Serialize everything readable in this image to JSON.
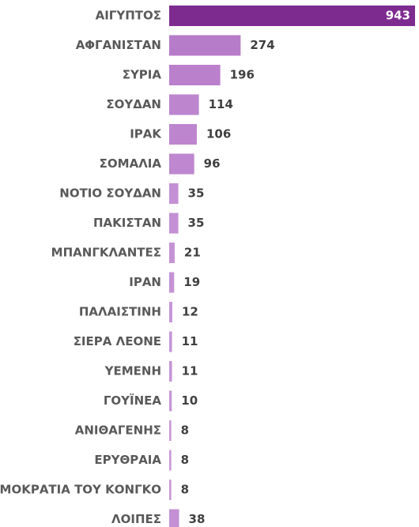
{
  "chart_data": {
    "type": "hbar",
    "categories": [
      "ΑΙΓΥΠΤΟΣ",
      "ΑΦΓΑΝΙΣΤΑΝ",
      "ΣΥΡΙΑ",
      "ΣΟΥΔΑΝ",
      "ΙΡΑΚ",
      "ΣΟΜΑΛΙΑ",
      "ΝΟΤΙΟ ΣΟΥΔΑΝ",
      "ΠΑΚΙΣΤΑΝ",
      "ΜΠΑΝΓΚΛΑΝΤΕΣ",
      "ΙΡΑΝ",
      "ΠΑΛΑΙΣΤΙΝΗ",
      "ΣΙΕΡΑ ΛΕΟΝΕ",
      "ΥΕΜΕΝΗ",
      "ΓΟΥΪΝΕΑ",
      "ΑΝΙΘΑΓΕΝΗΣ",
      "ΕΡΥΘΡΑΙΑ",
      "ΔΗΜΟΚΡΑΤΙΑ ΤΟΥ ΚΟΝΓΚΟ",
      "ΛΟΙΠΕΣ"
    ],
    "values": [
      943,
      274,
      196,
      114,
      106,
      96,
      35,
      35,
      21,
      19,
      12,
      11,
      11,
      10,
      8,
      8,
      8,
      38
    ],
    "colors": [
      "#7e2b90",
      "#b77cc9",
      "#ba80cc",
      "#bd85ce",
      "#bd85ce",
      "#be87cf",
      "#c290d3",
      "#c290d3",
      "#c493d4",
      "#c493d4",
      "#c697d6",
      "#c697d6",
      "#c697d6",
      "#c697d6",
      "#c89ad7",
      "#c89ad7",
      "#c89ad7",
      "#c290d3"
    ]
  }
}
